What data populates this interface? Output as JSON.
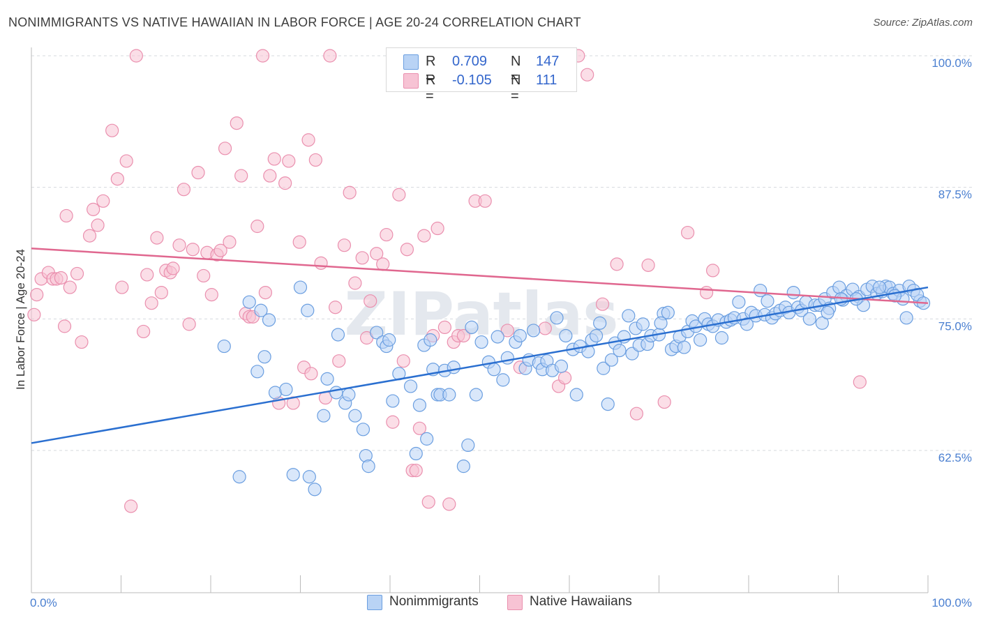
{
  "header": {
    "title": "NONIMMIGRANTS VS NATIVE HAWAIIAN IN LABOR FORCE | AGE 20-24 CORRELATION CHART",
    "source": "Source: ZipAtlas.com"
  },
  "legend_top": {
    "rows": [
      {
        "r_label": "R =",
        "r_value": "0.709",
        "n_label": "N =",
        "n_value": "147",
        "color": "#a9c8f2"
      },
      {
        "r_label": "R =",
        "r_value": "-0.105",
        "n_label": "N =",
        "n_value": "111",
        "color": "#f6b8cc"
      }
    ]
  },
  "legend_bottom": {
    "items": [
      {
        "label": "Nonimmigrants",
        "color": "#a9c8f2"
      },
      {
        "label": "Native Hawaiians",
        "color": "#f6b8cc"
      }
    ]
  },
  "watermark": "ZIPatlas",
  "chart_data": {
    "type": "scatter",
    "title": "NONIMMIGRANTS VS NATIVE HAWAIIAN IN LABOR FORCE | AGE 20-24 CORRELATION CHART",
    "xlabel": "",
    "ylabel": "In Labor Force | Age 20-24",
    "xlim": [
      0,
      100
    ],
    "ylim": [
      52,
      102
    ],
    "x_tick_labels": [
      "0.0%",
      "100.0%"
    ],
    "y_ticks": [
      62.5,
      75.0,
      87.5,
      100.0
    ],
    "y_tick_labels": [
      "62.5%",
      "75.0%",
      "87.5%",
      "100.0%"
    ],
    "grid": true,
    "legend_position": "top-center",
    "colors": {
      "blue": "#6a9ee0",
      "blue_fill": "#b9d3f5",
      "blue_line": "#2a6fd0",
      "pink": "#ea8fae",
      "pink_fill": "#f7c3d4",
      "pink_line": "#e0678f"
    },
    "series": [
      {
        "name": "Nonimmigrants",
        "r": 0.709,
        "n": 147,
        "trend": [
          [
            0,
            63.2
          ],
          [
            100,
            78.0
          ]
        ],
        "points": [
          [
            21.5,
            72.4
          ],
          [
            23.2,
            60.0
          ],
          [
            24.3,
            76.6
          ],
          [
            25.2,
            70.0
          ],
          [
            25.6,
            75.8
          ],
          [
            26.0,
            71.4
          ],
          [
            26.5,
            74.9
          ],
          [
            27.2,
            68.0
          ],
          [
            28.4,
            68.3
          ],
          [
            29.2,
            60.2
          ],
          [
            30.0,
            78.0
          ],
          [
            30.8,
            75.8
          ],
          [
            31.0,
            60.0
          ],
          [
            31.6,
            58.8
          ],
          [
            32.6,
            65.8
          ],
          [
            33.0,
            69.3
          ],
          [
            34.0,
            68.0
          ],
          [
            34.2,
            73.5
          ],
          [
            35.0,
            67.0
          ],
          [
            35.4,
            67.8
          ],
          [
            36.1,
            65.8
          ],
          [
            37.0,
            64.5
          ],
          [
            37.3,
            62.0
          ],
          [
            37.6,
            61.0
          ],
          [
            38.5,
            73.7
          ],
          [
            39.2,
            72.8
          ],
          [
            39.6,
            72.4
          ],
          [
            39.9,
            73.0
          ],
          [
            40.3,
            67.2
          ],
          [
            41.0,
            69.8
          ],
          [
            42.3,
            68.6
          ],
          [
            42.9,
            62.2
          ],
          [
            43.3,
            66.8
          ],
          [
            43.8,
            72.5
          ],
          [
            44.1,
            63.6
          ],
          [
            44.5,
            73.0
          ],
          [
            44.8,
            70.2
          ],
          [
            45.3,
            67.8
          ],
          [
            45.6,
            67.8
          ],
          [
            46.1,
            70.1
          ],
          [
            46.6,
            67.8
          ],
          [
            47.1,
            70.4
          ],
          [
            48.2,
            61.0
          ],
          [
            48.7,
            63.0
          ],
          [
            49.1,
            74.2
          ],
          [
            49.6,
            67.8
          ],
          [
            50.2,
            72.8
          ],
          [
            51.0,
            70.9
          ],
          [
            51.6,
            70.2
          ],
          [
            52.0,
            73.3
          ],
          [
            52.6,
            69.2
          ],
          [
            53.1,
            71.3
          ],
          [
            54.0,
            72.8
          ],
          [
            54.5,
            73.4
          ],
          [
            55.1,
            70.3
          ],
          [
            55.5,
            71.1
          ],
          [
            56.0,
            73.9
          ],
          [
            56.6,
            70.8
          ],
          [
            57.0,
            70.2
          ],
          [
            57.5,
            71.0
          ],
          [
            58.1,
            70.1
          ],
          [
            58.6,
            75.1
          ],
          [
            59.1,
            70.5
          ],
          [
            59.6,
            73.4
          ],
          [
            60.4,
            72.1
          ],
          [
            60.8,
            67.8
          ],
          [
            61.2,
            72.4
          ],
          [
            62.1,
            71.9
          ],
          [
            62.5,
            73.0
          ],
          [
            63.0,
            73.4
          ],
          [
            63.4,
            74.6
          ],
          [
            63.8,
            70.3
          ],
          [
            64.3,
            66.9
          ],
          [
            64.7,
            71.1
          ],
          [
            65.1,
            72.7
          ],
          [
            65.6,
            72.0
          ],
          [
            66.1,
            73.3
          ],
          [
            66.6,
            75.3
          ],
          [
            67.0,
            71.7
          ],
          [
            67.4,
            74.1
          ],
          [
            67.8,
            72.5
          ],
          [
            68.2,
            74.5
          ],
          [
            68.7,
            72.6
          ],
          [
            69.1,
            73.4
          ],
          [
            70.0,
            73.5
          ],
          [
            70.5,
            75.5
          ],
          [
            71.0,
            75.6
          ],
          [
            71.4,
            72.1
          ],
          [
            71.9,
            72.4
          ],
          [
            72.3,
            73.3
          ],
          [
            72.8,
            72.3
          ],
          [
            73.2,
            73.8
          ],
          [
            73.7,
            74.8
          ],
          [
            74.1,
            74.3
          ],
          [
            74.6,
            73.0
          ],
          [
            75.1,
            75.0
          ],
          [
            75.5,
            74.5
          ],
          [
            76.0,
            74.3
          ],
          [
            76.6,
            74.9
          ],
          [
            77.0,
            73.2
          ],
          [
            77.5,
            74.7
          ],
          [
            78.0,
            74.9
          ],
          [
            78.4,
            75.1
          ],
          [
            78.9,
            76.6
          ],
          [
            79.4,
            75.0
          ],
          [
            79.8,
            74.5
          ],
          [
            80.3,
            75.6
          ],
          [
            80.8,
            75.3
          ],
          [
            81.3,
            77.7
          ],
          [
            81.8,
            75.4
          ],
          [
            82.1,
            76.7
          ],
          [
            82.6,
            75.1
          ],
          [
            83.0,
            75.5
          ],
          [
            83.5,
            75.8
          ],
          [
            84.1,
            76.1
          ],
          [
            84.5,
            75.6
          ],
          [
            85.0,
            77.5
          ],
          [
            85.5,
            76.1
          ],
          [
            85.9,
            75.8
          ],
          [
            86.4,
            76.6
          ],
          [
            86.8,
            75.0
          ],
          [
            87.4,
            76.3
          ],
          [
            87.9,
            76.3
          ],
          [
            88.2,
            74.6
          ],
          [
            88.5,
            76.9
          ],
          [
            89.0,
            76.0
          ],
          [
            89.4,
            77.5
          ],
          [
            90.1,
            78.0
          ],
          [
            90.5,
            76.8
          ],
          [
            90.9,
            77.2
          ],
          [
            91.6,
            77.8
          ],
          [
            92.3,
            77.1
          ],
          [
            92.8,
            76.3
          ],
          [
            93.2,
            77.8
          ],
          [
            93.8,
            78.1
          ],
          [
            94.3,
            77.4
          ],
          [
            94.9,
            77.6
          ],
          [
            95.3,
            78.1
          ],
          [
            95.7,
            78.0
          ],
          [
            96.1,
            77.4
          ],
          [
            96.8,
            77.7
          ],
          [
            97.2,
            76.9
          ],
          [
            97.9,
            78.1
          ],
          [
            98.4,
            77.7
          ],
          [
            99.1,
            76.7
          ],
          [
            97.6,
            75.1
          ],
          [
            96.3,
            77.2
          ],
          [
            98.8,
            77.3
          ],
          [
            99.5,
            76.5
          ],
          [
            94.6,
            78.0
          ],
          [
            92.0,
            76.9
          ],
          [
            90.3,
            76.9
          ],
          [
            88.8,
            75.6
          ],
          [
            70.2,
            74.6
          ]
        ]
      },
      {
        "name": "Native Hawaiians",
        "r": -0.105,
        "n": 111,
        "trend": [
          [
            0,
            81.7
          ],
          [
            100,
            76.5
          ]
        ],
        "points": [
          [
            0.3,
            75.4
          ],
          [
            0.6,
            77.3
          ],
          [
            1.1,
            78.8
          ],
          [
            1.9,
            79.4
          ],
          [
            2.4,
            78.8
          ],
          [
            2.8,
            78.8
          ],
          [
            3.3,
            78.9
          ],
          [
            3.7,
            74.3
          ],
          [
            3.9,
            84.8
          ],
          [
            4.3,
            78.0
          ],
          [
            5.1,
            79.3
          ],
          [
            5.6,
            72.8
          ],
          [
            6.5,
            82.9
          ],
          [
            6.9,
            85.4
          ],
          [
            7.4,
            83.9
          ],
          [
            8.0,
            86.2
          ],
          [
            9.0,
            92.9
          ],
          [
            9.6,
            88.3
          ],
          [
            10.1,
            78.0
          ],
          [
            10.6,
            90.0
          ],
          [
            11.1,
            57.2
          ],
          [
            11.7,
            100.0
          ],
          [
            12.5,
            73.8
          ],
          [
            12.9,
            79.2
          ],
          [
            13.4,
            76.5
          ],
          [
            14.0,
            82.7
          ],
          [
            14.5,
            77.5
          ],
          [
            15.0,
            79.6
          ],
          [
            15.5,
            79.4
          ],
          [
            15.8,
            79.8
          ],
          [
            16.5,
            82.0
          ],
          [
            17.0,
            87.3
          ],
          [
            17.6,
            74.5
          ],
          [
            18.0,
            81.6
          ],
          [
            18.6,
            88.9
          ],
          [
            19.2,
            79.1
          ],
          [
            19.6,
            81.3
          ],
          [
            20.1,
            77.3
          ],
          [
            20.7,
            81.1
          ],
          [
            21.1,
            81.5
          ],
          [
            21.6,
            91.2
          ],
          [
            22.1,
            82.3
          ],
          [
            22.9,
            93.6
          ],
          [
            23.4,
            88.6
          ],
          [
            23.9,
            75.5
          ],
          [
            24.3,
            75.2
          ],
          [
            24.7,
            75.2
          ],
          [
            25.2,
            83.8
          ],
          [
            25.8,
            100.0
          ],
          [
            26.1,
            77.5
          ],
          [
            26.6,
            88.6
          ],
          [
            27.1,
            90.2
          ],
          [
            27.6,
            67.0
          ],
          [
            28.3,
            87.9
          ],
          [
            28.7,
            90.0
          ],
          [
            29.2,
            67.0
          ],
          [
            29.9,
            82.3
          ],
          [
            30.4,
            70.4
          ],
          [
            30.9,
            92.0
          ],
          [
            31.2,
            69.8
          ],
          [
            31.7,
            90.1
          ],
          [
            32.3,
            80.3
          ],
          [
            32.8,
            67.5
          ],
          [
            33.3,
            100.0
          ],
          [
            33.9,
            76.1
          ],
          [
            34.3,
            71.0
          ],
          [
            34.9,
            82.0
          ],
          [
            35.5,
            87.0
          ],
          [
            36.1,
            78.4
          ],
          [
            36.9,
            80.8
          ],
          [
            37.4,
            73.2
          ],
          [
            37.8,
            76.7
          ],
          [
            38.5,
            81.2
          ],
          [
            39.2,
            80.2
          ],
          [
            39.6,
            83.0
          ],
          [
            40.3,
            65.2
          ],
          [
            41.0,
            86.8
          ],
          [
            41.5,
            71.0
          ],
          [
            41.9,
            81.6
          ],
          [
            42.5,
            60.6
          ],
          [
            42.9,
            60.6
          ],
          [
            43.3,
            64.6
          ],
          [
            43.8,
            82.9
          ],
          [
            44.3,
            57.6
          ],
          [
            44.8,
            73.4
          ],
          [
            45.3,
            83.6
          ],
          [
            46.1,
            74.2
          ],
          [
            46.6,
            57.4
          ],
          [
            47.1,
            72.8
          ],
          [
            47.6,
            73.4
          ],
          [
            48.2,
            73.4
          ],
          [
            49.5,
            86.2
          ],
          [
            50.6,
            86.2
          ],
          [
            53.1,
            73.9
          ],
          [
            54.5,
            70.4
          ],
          [
            56.0,
            100.0
          ],
          [
            57.3,
            74.1
          ],
          [
            58.8,
            68.6
          ],
          [
            59.5,
            69.4
          ],
          [
            60.0,
            98.4
          ],
          [
            61.0,
            100.0
          ],
          [
            62.0,
            98.2
          ],
          [
            63.7,
            76.4
          ],
          [
            65.3,
            80.2
          ],
          [
            67.5,
            66.0
          ],
          [
            68.8,
            80.1
          ],
          [
            70.6,
            67.1
          ],
          [
            73.2,
            83.2
          ],
          [
            75.3,
            77.5
          ],
          [
            76.0,
            79.6
          ],
          [
            92.4,
            69.0
          ]
        ]
      }
    ]
  }
}
